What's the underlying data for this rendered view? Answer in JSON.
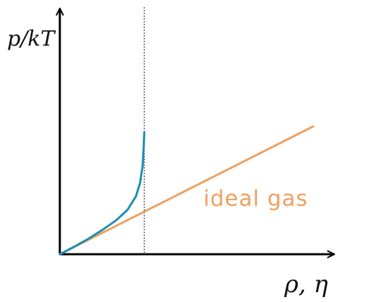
{
  "chart_data": {
    "type": "line",
    "title": "",
    "xlabel": "ρ, η",
    "ylabel": "p/kT",
    "xlim": [
      0,
      10
    ],
    "ylim": [
      0,
      10
    ],
    "grid": false,
    "ticks": false,
    "vertical_line": {
      "x": 3,
      "style": "dotted"
    },
    "series": [
      {
        "color": "#f0a060",
        "points": [
          [
            0,
            0
          ],
          [
            9,
            5.2
          ]
        ]
      },
      {
        "color": "#1a8fb0",
        "points": [
          [
            0,
            0
          ],
          [
            0.5,
            0.3
          ],
          [
            1.0,
            0.62
          ],
          [
            1.5,
            0.98
          ],
          [
            2.0,
            1.38
          ],
          [
            2.4,
            1.8
          ],
          [
            2.7,
            2.35
          ],
          [
            2.85,
            2.9
          ],
          [
            2.94,
            3.6
          ],
          [
            2.98,
            4.4
          ],
          [
            3.0,
            4.95
          ]
        ]
      }
    ],
    "annotations": [
      {
        "text": "ideal gas",
        "color": "#f0a060"
      }
    ]
  }
}
